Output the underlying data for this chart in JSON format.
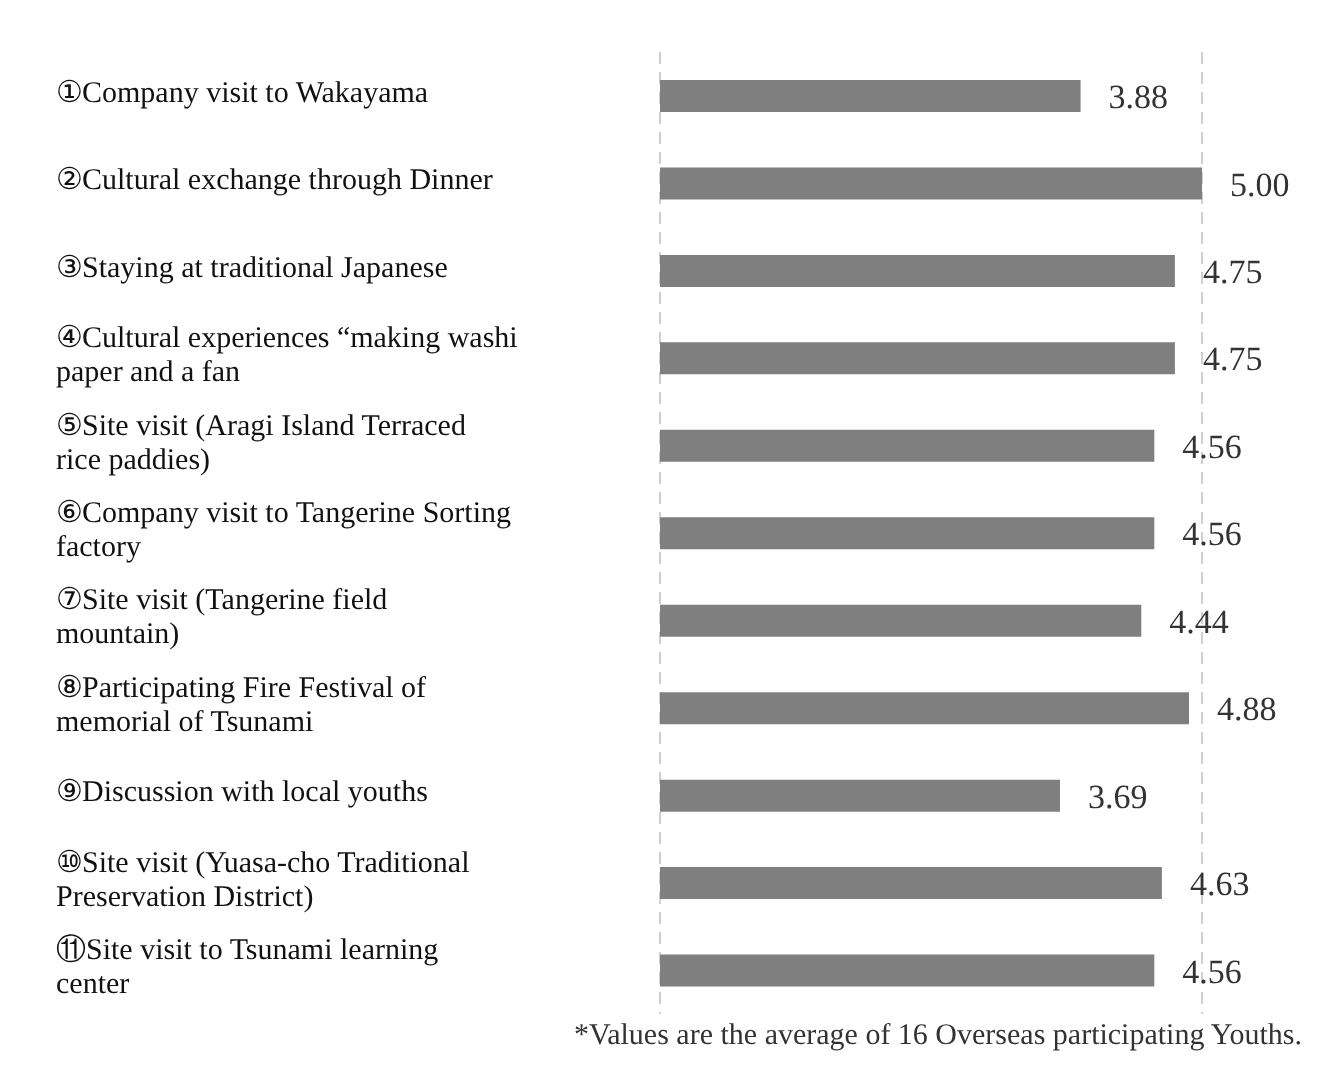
{
  "chart_data": {
    "type": "bar",
    "orientation": "horizontal",
    "categories": [
      "①Company visit to Wakayama",
      "②Cultural exchange through Dinner",
      "③Staying at traditional Japanese",
      "④Cultural experiences “making washi paper and a fan",
      "⑤Site visit (Aragi Island Terraced rice paddies)",
      "⑥Company visit to Tangerine Sorting factory",
      "⑦Site visit (Tangerine field mountain)",
      "⑧Participating Fire Festival of memorial of Tsunami",
      "⑨Discussion with local youths",
      "⑩Site visit (Yuasa-cho Traditional Preservation District)",
      "⑪Site visit to Tsunami learning center"
    ],
    "values": [
      3.88,
      5.0,
      4.75,
      4.75,
      4.56,
      4.56,
      4.44,
      4.88,
      3.69,
      4.63,
      4.56
    ],
    "value_labels": [
      "3.88",
      "5.00",
      "4.75",
      "4.75",
      "4.56",
      "4.56",
      "4.44",
      "4.88",
      "3.69",
      "4.63",
      "4.56"
    ],
    "color": "#7f7f7f",
    "xlim": [
      0,
      5
    ],
    "grid": "x",
    "tick_labels": false,
    "annotations": [
      "*Values are the average of 16 Overseas participating Youths."
    ]
  }
}
